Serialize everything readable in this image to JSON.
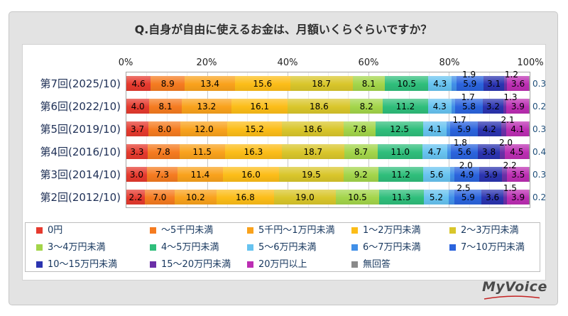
{
  "title": "Q.自身が自由に使えるお金は、月額いくらぐらいですか？",
  "axis": {
    "ticks": [
      "0%",
      "20%",
      "40%",
      "60%",
      "80%",
      "100%"
    ]
  },
  "legend": [
    {
      "label": "0円",
      "color": "#e63a2e"
    },
    {
      "label": "～5千円未満",
      "color": "#f57b20"
    },
    {
      "label": "5千円～1万円未満",
      "color": "#f9a21c"
    },
    {
      "label": "1～2万円未満",
      "color": "#fcbd18"
    },
    {
      "label": "2～3万円未満",
      "color": "#d9c62b"
    },
    {
      "label": "3～4万円未満",
      "color": "#a3d54a"
    },
    {
      "label": "4～5万円未満",
      "color": "#2fbe7b"
    },
    {
      "label": "5～6万円未満",
      "color": "#67c3f0"
    },
    {
      "label": "6～7万円未満",
      "color": "#4190e8"
    },
    {
      "label": "7～10万円未満",
      "color": "#2b64dd"
    },
    {
      "label": "10～15万円未満",
      "color": "#2b34b0"
    },
    {
      "label": "15～20万円未満",
      "color": "#6b2fa7"
    },
    {
      "label": "20万円以上",
      "color": "#bc2eb3"
    },
    {
      "label": "無回答",
      "color": "#8a8a8a"
    }
  ],
  "render_hints": {
    "above_indices": [
      8,
      11
    ],
    "outside_index": 13
  },
  "logo": {
    "text": "MyVoice"
  },
  "chart_data": {
    "type": "bar",
    "orientation": "horizontal-stacked",
    "title": "Q.自身が自由に使えるお金は、月額いくらぐらいですか？",
    "xlabel": "",
    "ylabel": "",
    "xlim": [
      0,
      100
    ],
    "x_ticks": [
      "0%",
      "20%",
      "40%",
      "60%",
      "80%",
      "100%"
    ],
    "grid": true,
    "legend_position": "bottom",
    "unit": "percent",
    "categories": [
      "第7回(2025/10)",
      "第6回(2022/10)",
      "第5回(2019/10)",
      "第4回(2016/10)",
      "第3回(2014/10)",
      "第2回(2012/10)"
    ],
    "series": [
      {
        "name": "0円",
        "values": [
          4.6,
          4.0,
          3.7,
          3.3,
          3.0,
          2.2
        ]
      },
      {
        "name": "～5千円未満",
        "values": [
          8.9,
          8.1,
          8.0,
          7.8,
          7.3,
          7.0
        ]
      },
      {
        "name": "5千円～1万円未満",
        "values": [
          13.4,
          13.2,
          12.0,
          11.5,
          11.4,
          10.2
        ]
      },
      {
        "name": "1～2万円未満",
        "values": [
          15.6,
          16.1,
          15.2,
          16.3,
          16.0,
          16.8
        ]
      },
      {
        "name": "2～3万円未満",
        "values": [
          18.7,
          18.6,
          18.6,
          18.7,
          19.5,
          19.0
        ]
      },
      {
        "name": "3～4万円未満",
        "values": [
          8.1,
          8.2,
          7.8,
          8.7,
          9.2,
          10.5
        ]
      },
      {
        "name": "4～5万円未満",
        "values": [
          10.5,
          11.2,
          12.5,
          11.0,
          11.2,
          11.3
        ]
      },
      {
        "name": "5～6万円未満",
        "values": [
          4.3,
          4.3,
          4.1,
          4.7,
          5.6,
          5.2
        ]
      },
      {
        "name": "6～7万円未満",
        "values": [
          1.9,
          1.7,
          1.7,
          1.8,
          2.0,
          2.5
        ]
      },
      {
        "name": "7～10万円未満",
        "values": [
          5.9,
          5.8,
          5.9,
          5.6,
          4.9,
          5.9
        ]
      },
      {
        "name": "10～15万円未満",
        "values": [
          3.1,
          3.2,
          4.2,
          3.8,
          3.9,
          3.6
        ]
      },
      {
        "name": "15～20万円未満",
        "values": [
          1.2,
          1.3,
          2.1,
          2.0,
          2.2,
          1.5
        ]
      },
      {
        "name": "20万円以上",
        "values": [
          3.6,
          3.9,
          4.1,
          4.5,
          3.5,
          3.9
        ]
      },
      {
        "name": "無回答",
        "values": [
          0.3,
          0.2,
          0.3,
          0.4,
          0.3,
          0.2
        ]
      }
    ]
  }
}
